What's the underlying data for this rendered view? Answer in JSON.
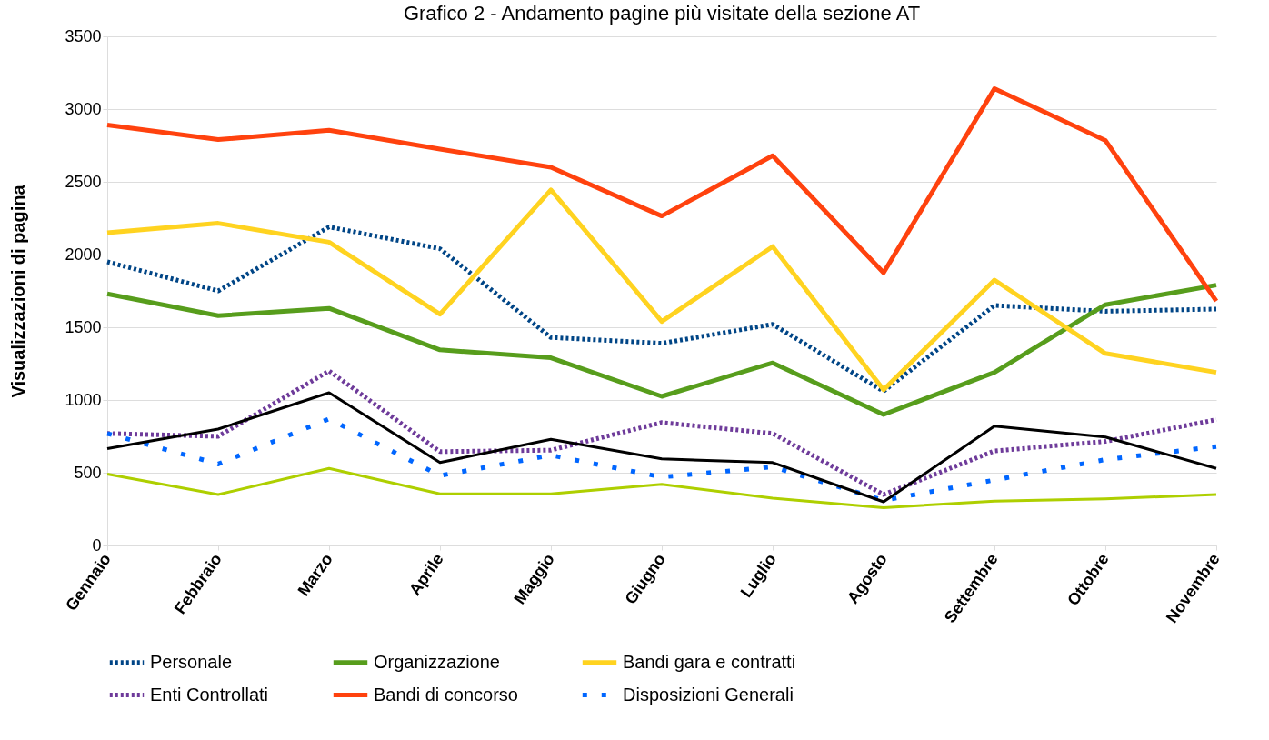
{
  "chart_data": {
    "type": "line",
    "title": "Grafico 2 - Andamento pagine più visitate della sezione AT",
    "ylabel": "Visualizzazioni di pagina",
    "categories": [
      "Gennaio",
      "Febbraio",
      "Marzo",
      "Aprile",
      "Maggio",
      "Giugno",
      "Luglio",
      "Agosto",
      "Settembre",
      "Ottobre",
      "Novembre"
    ],
    "series": [
      {
        "name": "Personale",
        "color": "#004586",
        "line_style": "dotted",
        "values": [
          1950,
          1750,
          2190,
          2040,
          1430,
          1390,
          1520,
          1060,
          1650,
          1610,
          1625
        ]
      },
      {
        "name": "Organizzazione",
        "color": "#579d1c",
        "line_style": "solid",
        "values": [
          1730,
          1580,
          1630,
          1345,
          1290,
          1025,
          1255,
          900,
          1190,
          1655,
          1790
        ]
      },
      {
        "name": "Bandi gara e contratti",
        "color": "#ffd320",
        "line_style": "solid",
        "values": [
          2150,
          2215,
          2085,
          1590,
          2445,
          1540,
          2055,
          1070,
          1825,
          1320,
          1190
        ]
      },
      {
        "name": "Enti Controllati",
        "color": "#6e3b9a",
        "line_style": "dotted",
        "values": [
          770,
          750,
          1200,
          645,
          655,
          845,
          770,
          350,
          650,
          715,
          865
        ]
      },
      {
        "name": "Bandi di concorso",
        "color": "#ff420e",
        "line_style": "solid",
        "values": [
          2890,
          2790,
          2855,
          2725,
          2600,
          2265,
          2680,
          1875,
          3140,
          2785,
          1680
        ]
      },
      {
        "name": "Disposizioni Generali",
        "color": "#0066ff",
        "line_style": "dashed",
        "values": [
          770,
          560,
          870,
          480,
          620,
          470,
          540,
          310,
          450,
          590,
          680
        ]
      },
      {
        "color": "#000000",
        "line_style": "solid",
        "values": [
          665,
          800,
          1050,
          570,
          730,
          595,
          570,
          300,
          820,
          745,
          530
        ]
      },
      {
        "color": "#aecf00",
        "line_style": "solid",
        "values": [
          490,
          350,
          530,
          355,
          355,
          420,
          325,
          260,
          305,
          320,
          350
        ]
      }
    ],
    "ylim": [
      0,
      3500
    ],
    "yticks": [
      0,
      500,
      1000,
      1500,
      2000,
      2500,
      3000,
      3500
    ],
    "grid": "y",
    "legend": "bottom"
  }
}
